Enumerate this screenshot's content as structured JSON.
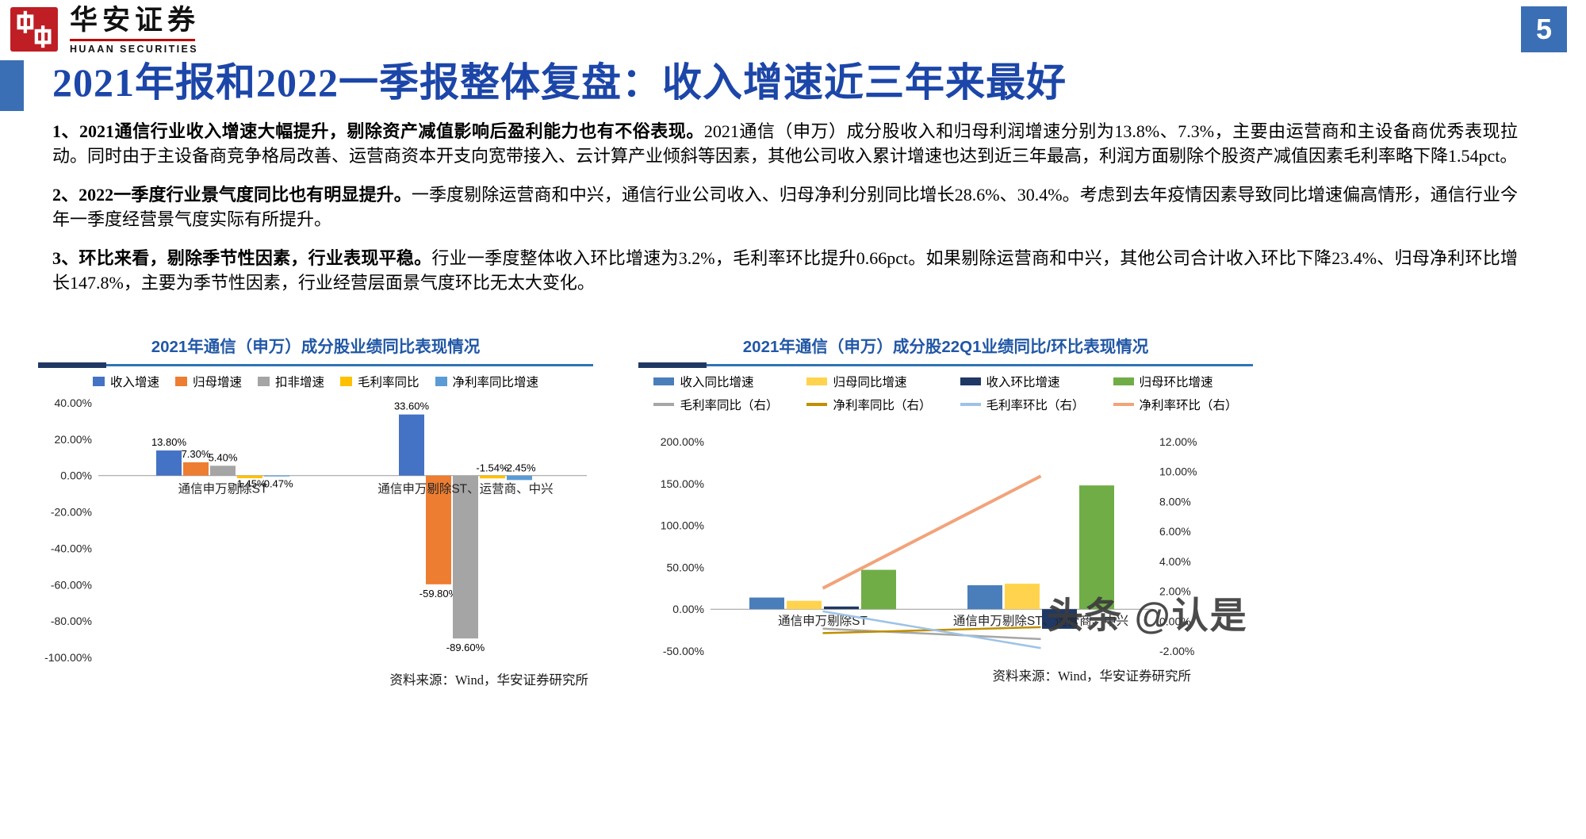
{
  "meta": {
    "page_number": "5"
  },
  "brand": {
    "name_cn": "华安证券",
    "name_en": "HUAAN SECURITIES"
  },
  "colors": {
    "accent_blue": "#3a6fb5",
    "title_blue": "#1c46a8",
    "chart_title_blue": "#2157a6",
    "underline_blue": "#2e74b5",
    "underline_dark": "#203864",
    "brand_red": "#c00000"
  },
  "title": "2021年报和2022一季报整体复盘：收入增速近三年来最好",
  "paragraphs": [
    {
      "lead": "1、2021通信行业收入增速大幅提升，剔除资产减值影响后盈利能力也有不俗表现。",
      "body": "2021通信（申万）成分股收入和归母利润增速分别为13.8%、7.3%，主要由运营商和主设备商优秀表现拉动。同时由于主设备商竞争格局改善、运营商资本开支向宽带接入、云计算产业倾斜等因素，其他公司收入累计增速也达到近三年最高，利润方面剔除个股资产减值因素毛利率略下降1.54pct。"
    },
    {
      "lead": "2、2022一季度行业景气度同比也有明显提升。",
      "body": "一季度剔除运营商和中兴，通信行业公司收入、归母净利分别同比增长28.6%、30.4%。考虑到去年疫情因素导致同比增速偏高情形，通信行业今年一季度经营景气度实际有所提升。"
    },
    {
      "lead": "3、环比来看，剔除季节性因素，行业表现平稳。",
      "body": "行业一季度整体收入环比增速为3.2%，毛利率环比提升0.66pct。如果剔除运营商和中兴，其他公司合计收入环比下降23.4%、归母净利环比增长147.8%，主要为季节性因素，行业经营层面景气度环比无太大变化。"
    }
  ],
  "watermark": "头条 @认是",
  "chart_data": [
    {
      "type": "bar",
      "title": "2021年通信（申万）成分股业绩同比表现情况",
      "source": "资料来源：Wind，华安证券研究所",
      "legend_position": "top",
      "grid": false,
      "categories": [
        "通信申万剔除ST",
        "通信申万剔除ST、运营商、中兴"
      ],
      "series": [
        {
          "name": "收入增速",
          "color": "#4472c4",
          "values": [
            13.8,
            33.6
          ],
          "labels": [
            "13.80%",
            "33.60%"
          ]
        },
        {
          "name": "归母增速",
          "color": "#ed7d31",
          "values": [
            7.3,
            -59.8
          ],
          "labels": [
            "7.30%",
            "-59.80%"
          ]
        },
        {
          "name": "扣非增速",
          "color": "#a5a5a5",
          "values": [
            5.4,
            -89.6
          ],
          "labels": [
            "5.40%",
            "-89.60%"
          ]
        },
        {
          "name": "毛利率同比",
          "color": "#ffc000",
          "values": [
            -1.45,
            -1.54
          ],
          "labels": [
            "-1.45%",
            "-1.54%"
          ]
        },
        {
          "name": "净利率同比增速",
          "color": "#5b9bd5",
          "values": [
            -0.47,
            -2.45
          ],
          "labels": [
            "-0.47%",
            "-2.45%"
          ]
        }
      ],
      "y_axis": {
        "max": 40,
        "min": -100,
        "step": 20,
        "tick_values": [
          40,
          20,
          0,
          -20,
          -40,
          -60,
          -80,
          -100
        ],
        "tick_labels": [
          "40.00%",
          "20.00%",
          "0.00%",
          "-20.00%",
          "-40.00%",
          "-60.00%",
          "-80.00%",
          "-100.00%"
        ]
      }
    },
    {
      "type": "bar+line",
      "title": "2021年通信（申万）成分股22Q1业绩同比/环比表现情况",
      "source": "资料来源：Wind，华安证券研究所",
      "legend_position": "top",
      "grid": false,
      "categories": [
        "通信申万剔除ST",
        "通信申万剔除ST、运营商、中兴"
      ],
      "bar_series": [
        {
          "name": "收入同比增速",
          "color": "#4a7ebb",
          "values": [
            13.9,
            28.6
          ]
        },
        {
          "name": "归母同比增速",
          "color": "#ffd34d",
          "values": [
            10.0,
            30.4
          ]
        },
        {
          "name": "收入环比增速",
          "color": "#1f3864",
          "values": [
            3.2,
            -23.4
          ]
        },
        {
          "name": "归母环比增速",
          "color": "#70ad47",
          "values": [
            47.0,
            147.8
          ]
        }
      ],
      "line_series": [
        {
          "name": "毛利率同比（右）",
          "color": "#a6a6a6",
          "values": [
            -0.5,
            -1.2
          ]
        },
        {
          "name": "净利率同比（右）",
          "color": "#bf8f00",
          "values": [
            -0.8,
            -0.4
          ]
        },
        {
          "name": "毛利率环比（右）",
          "color": "#9dc3e6",
          "values": [
            0.66,
            -1.8
          ]
        },
        {
          "name": "净利率环比（右）",
          "color": "#f2a37a",
          "values": [
            2.2,
            9.7
          ],
          "thick": true
        }
      ],
      "left_axis": {
        "max": 200,
        "min": -50,
        "tick_values": [
          200,
          150,
          100,
          50,
          0,
          -50
        ],
        "tick_labels": [
          "200.00%",
          "150.00%",
          "100.00%",
          "50.00%",
          "0.00%",
          "-50.00%"
        ]
      },
      "right_axis": {
        "max": 12,
        "min": -2,
        "tick_values": [
          12,
          10,
          8,
          6,
          4,
          2,
          0,
          -2
        ],
        "tick_labels": [
          "12.00%",
          "10.00%",
          "8.00%",
          "6.00%",
          "4.00%",
          "2.00%",
          "0.00%",
          "-2.00%"
        ]
      }
    }
  ]
}
